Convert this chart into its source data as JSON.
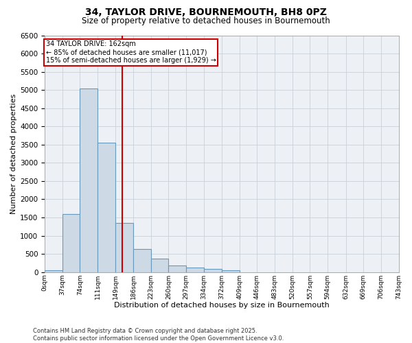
{
  "title_line1": "34, TAYLOR DRIVE, BOURNEMOUTH, BH8 0PZ",
  "title_line2": "Size of property relative to detached houses in Bournemouth",
  "xlabel": "Distribution of detached houses by size in Bournemouth",
  "ylabel": "Number of detached properties",
  "bin_labels": [
    "0sqm",
    "37sqm",
    "74sqm",
    "111sqm",
    "149sqm",
    "186sqm",
    "223sqm",
    "260sqm",
    "297sqm",
    "334sqm",
    "372sqm",
    "409sqm",
    "446sqm",
    "483sqm",
    "520sqm",
    "557sqm",
    "594sqm",
    "632sqm",
    "669sqm",
    "706sqm",
    "743sqm"
  ],
  "bar_values": [
    50,
    1600,
    5050,
    3550,
    1350,
    630,
    370,
    180,
    120,
    80,
    50,
    0,
    0,
    0,
    0,
    0,
    0,
    0,
    0,
    0
  ],
  "bin_edges": [
    0,
    37,
    74,
    111,
    149,
    186,
    223,
    260,
    297,
    334,
    372,
    409,
    446,
    483,
    520,
    557,
    594,
    632,
    669,
    706,
    743
  ],
  "bar_color": "#cdd9e5",
  "bar_edge_color": "#6699bb",
  "grid_color": "#c8d0d8",
  "background_color": "#edf1f5",
  "vline_x": 162,
  "vline_color": "#cc0000",
  "ylim": [
    0,
    6500
  ],
  "yticks": [
    0,
    500,
    1000,
    1500,
    2000,
    2500,
    3000,
    3500,
    4000,
    4500,
    5000,
    5500,
    6000,
    6500
  ],
  "annotation_title": "34 TAYLOR DRIVE: 162sqm",
  "annotation_line1": "← 85% of detached houses are smaller (11,017)",
  "annotation_line2": "15% of semi-detached houses are larger (1,929) →",
  "footer_line1": "Contains HM Land Registry data © Crown copyright and database right 2025.",
  "footer_line2": "Contains public sector information licensed under the Open Government Licence v3.0."
}
